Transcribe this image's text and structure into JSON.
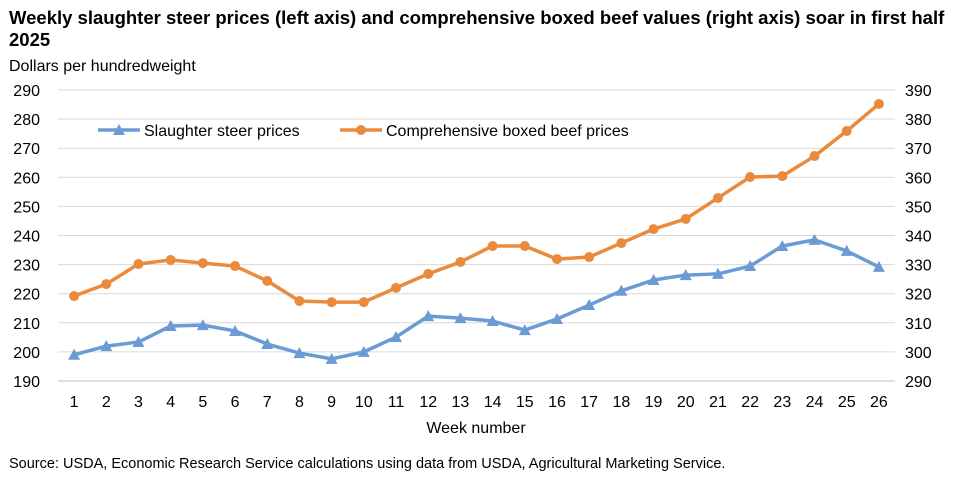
{
  "chart_data": {
    "type": "line",
    "title": "Weekly slaughter steer prices (left axis) and comprehensive boxed beef values (right axis) soar in first half 2025",
    "ylabel": "Dollars per hundredweight",
    "xlabel": "Week number",
    "source": "Source: USDA, Economic Research Service calculations using data from USDA, Agricultural Marketing Service.",
    "x": [
      1,
      2,
      3,
      4,
      5,
      6,
      7,
      8,
      9,
      10,
      11,
      12,
      13,
      14,
      15,
      16,
      17,
      18,
      19,
      20,
      21,
      22,
      23,
      24,
      25,
      26
    ],
    "ylim_left": [
      190,
      290
    ],
    "ylim_right": [
      290,
      390
    ],
    "yticks_left": [
      190,
      200,
      210,
      220,
      230,
      240,
      250,
      260,
      270,
      280,
      290
    ],
    "yticks_right": [
      290,
      300,
      310,
      320,
      330,
      340,
      350,
      360,
      370,
      380,
      390
    ],
    "grid": true,
    "legend": "top-left",
    "series": [
      {
        "name": "Slaughter steer prices",
        "axis": "left",
        "color": "#6a9bd4",
        "marker": "triangle",
        "values": [
          199,
          202,
          203.4,
          208.9,
          209.2,
          207.2,
          202.7,
          199.6,
          197.6,
          200,
          205.1,
          212.3,
          211.6,
          210.6,
          207.5,
          211.3,
          216.1,
          221,
          224.7,
          226.4,
          226.8,
          229.5,
          236.4,
          238.5,
          234.7,
          229.2
        ]
      },
      {
        "name": "Comprehensive boxed beef prices",
        "axis": "right",
        "color": "#e98a3c",
        "marker": "circle",
        "values": [
          319.2,
          323.3,
          330.2,
          331.6,
          330.5,
          329.5,
          324.4,
          317.5,
          317.1,
          317.1,
          322,
          326.8,
          330.9,
          336.4,
          336.4,
          331.9,
          332.6,
          337.4,
          342.2,
          345.7,
          352.9,
          360.1,
          360.4,
          367.3,
          375.9,
          385.2
        ]
      }
    ]
  }
}
